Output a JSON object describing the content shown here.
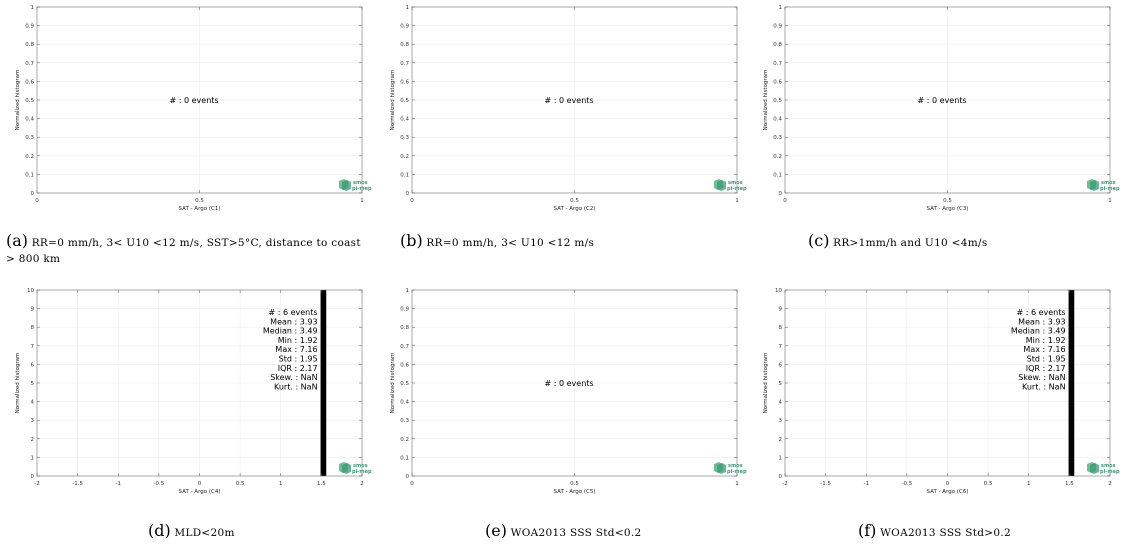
{
  "chart_data": [
    {
      "id": "a",
      "type": "bar",
      "xlabel": "SAT - Argo (C1)",
      "ylabel": "Normalized histogram",
      "xlim": [
        0,
        1
      ],
      "ylim": [
        0,
        1
      ],
      "xticks": [
        "0",
        "0.5",
        "1"
      ],
      "yticks": [
        "0",
        "0.1",
        "0.2",
        "0.3",
        "0.4",
        "0.5",
        "0.6",
        "0.7",
        "0.8",
        "0.9",
        "1"
      ],
      "bars": [],
      "stats": [
        "#  : 0 events"
      ],
      "logo": [
        "smos",
        "pi-mep"
      ],
      "caption": {
        "letter": "(a)",
        "text": "RR=0 mm/h, 3< U10 <12 m/s, SST>5°C, distance to coast > 800 km"
      }
    },
    {
      "id": "b",
      "type": "bar",
      "xlabel": "SAT - Argo (C2)",
      "ylabel": "Normalized histogram",
      "xlim": [
        0,
        1
      ],
      "ylim": [
        0,
        1
      ],
      "xticks": [
        "0",
        "0.5",
        "1"
      ],
      "yticks": [
        "0",
        "0.1",
        "0.2",
        "0.3",
        "0.4",
        "0.5",
        "0.6",
        "0.7",
        "0.8",
        "0.9",
        "1"
      ],
      "bars": [],
      "stats": [
        "#  : 0 events"
      ],
      "logo": [
        "smos",
        "pi-mep"
      ],
      "caption": {
        "letter": "(b)",
        "text": "RR=0 mm/h, 3< U10 <12 m/s"
      }
    },
    {
      "id": "c",
      "type": "bar",
      "xlabel": "SAT - Argo (C3)",
      "ylabel": "Normalized histogram",
      "xlim": [
        0,
        1
      ],
      "ylim": [
        0,
        1
      ],
      "xticks": [
        "0",
        "0.5",
        "1"
      ],
      "yticks": [
        "0",
        "0.1",
        "0.2",
        "0.3",
        "0.4",
        "0.5",
        "0.6",
        "0.7",
        "0.8",
        "0.9",
        "1"
      ],
      "bars": [],
      "stats": [
        "#  : 0 events"
      ],
      "logo": [
        "smos",
        "pi-mep"
      ],
      "caption": {
        "letter": "(c)",
        "text": "RR>1mm/h and U10 <4m/s"
      }
    },
    {
      "id": "d",
      "type": "bar",
      "xlabel": "SAT - Argo (C4)",
      "ylabel": "Normalized histogram",
      "xlim": [
        -2,
        2
      ],
      "ylim": [
        0,
        10
      ],
      "xticks": [
        "-2",
        "-1.5",
        "-1",
        "-0.5",
        "0",
        "0.5",
        "1",
        "1.5",
        "2"
      ],
      "yticks": [
        "0",
        "1",
        "2",
        "3",
        "4",
        "5",
        "6",
        "7",
        "8",
        "9",
        "10"
      ],
      "bars": [
        {
          "x0": 1.49,
          "x1": 1.56,
          "value": 10
        }
      ],
      "stats": [
        "#  : 6 events",
        "Mean : 3.93",
        "Median : 3.49",
        "Min : 1.92",
        "Max : 7.16",
        "Std : 1.95",
        "IQR : 2.17",
        "Skew. : NaN",
        "Kurt. : NaN"
      ],
      "logo": [
        "smos",
        "pi-mep"
      ],
      "caption": {
        "letter": "(d)",
        "text": "MLD<20m"
      }
    },
    {
      "id": "e",
      "type": "bar",
      "xlabel": "SAT - Argo (C5)",
      "ylabel": "Normalized histogram",
      "xlim": [
        0,
        1
      ],
      "ylim": [
        0,
        1
      ],
      "xticks": [
        "0",
        "0.5",
        "1"
      ],
      "yticks": [
        "0",
        "0.1",
        "0.2",
        "0.3",
        "0.4",
        "0.5",
        "0.6",
        "0.7",
        "0.8",
        "0.9",
        "1"
      ],
      "bars": [],
      "stats": [
        "#  : 0 events"
      ],
      "logo": [
        "smos",
        "pi-mep"
      ],
      "caption": {
        "letter": "(e)",
        "text": "WOA2013 SSS Std<0.2"
      }
    },
    {
      "id": "f",
      "type": "bar",
      "xlabel": "SAT - Argo (C6)",
      "ylabel": "Normalized histogram",
      "xlim": [
        -2,
        2
      ],
      "ylim": [
        0,
        10
      ],
      "xticks": [
        "-2",
        "-1.5",
        "-1",
        "-0.5",
        "0",
        "0.5",
        "1",
        "1.5",
        "2"
      ],
      "yticks": [
        "0",
        "1",
        "2",
        "3",
        "4",
        "5",
        "6",
        "7",
        "8",
        "9",
        "10"
      ],
      "bars": [
        {
          "x0": 1.49,
          "x1": 1.56,
          "value": 10
        }
      ],
      "stats": [
        "#  : 6 events",
        "Mean : 3.93",
        "Median : 3.49",
        "Min : 1.92",
        "Max : 7.16",
        "Std : 1.95",
        "IQR : 2.17",
        "Skew. : NaN",
        "Kurt. : NaN"
      ],
      "logo": [
        "smos",
        "pi-mep"
      ],
      "caption": {
        "letter": "(f)",
        "text": "WOA2013 SSS Std>0.2"
      }
    }
  ]
}
